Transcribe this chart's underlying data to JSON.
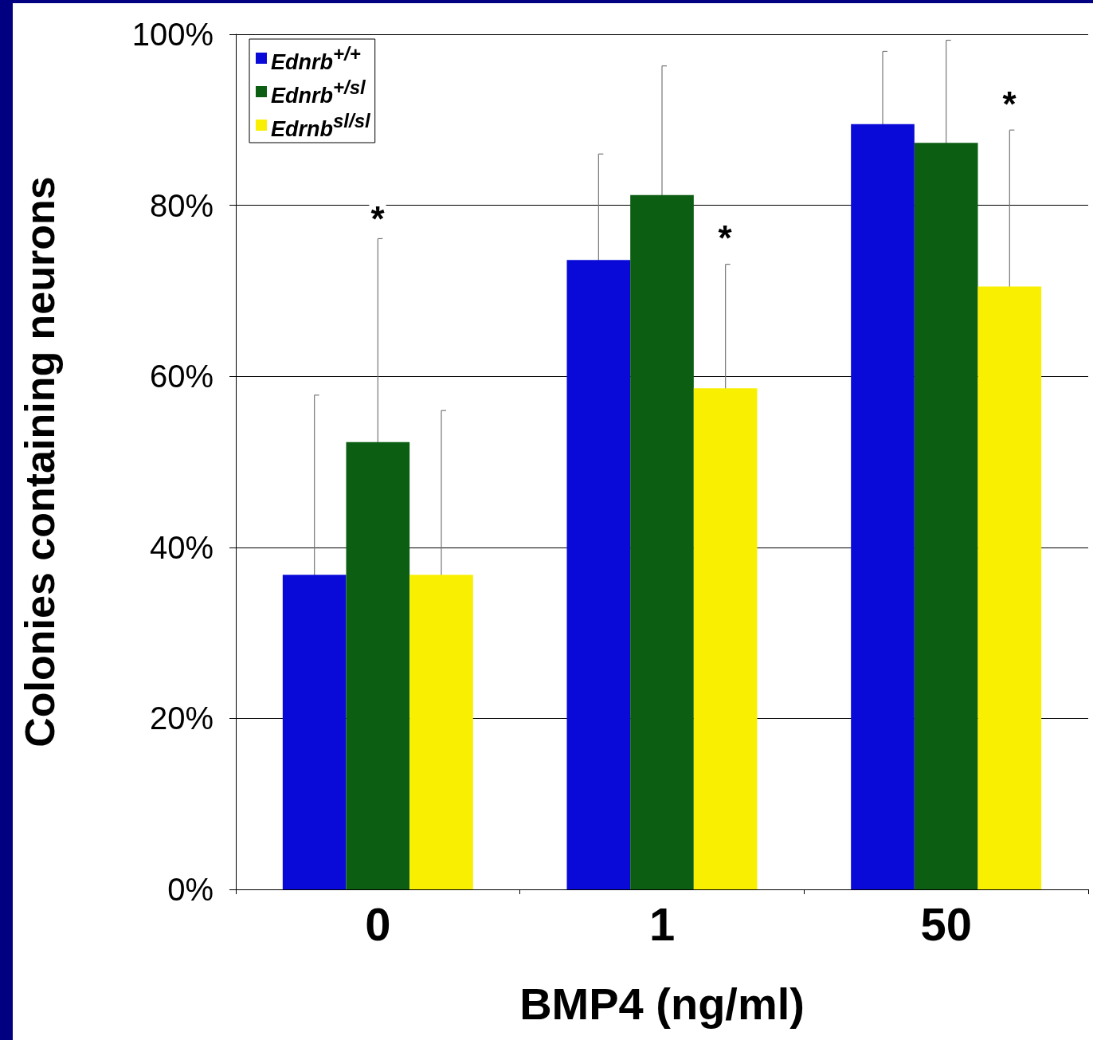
{
  "chart_data": {
    "type": "bar",
    "xlabel": "BMP4 (ng/ml)",
    "ylabel": "Colonies containing neurons",
    "categories": [
      "0",
      "1",
      "50"
    ],
    "series": [
      {
        "name": "Ednrb$^{+/+}$",
        "color": "#0a0ad8",
        "values": [
          36.8,
          73.6,
          89.5
        ],
        "errors": [
          21,
          12.4,
          8.5
        ]
      },
      {
        "name": "Ednrb$^{+/sl}$",
        "color": "#0b5e12",
        "values": [
          52.3,
          81.2,
          87.3
        ],
        "errors": [
          23.8,
          15.1,
          12
        ]
      },
      {
        "name": "Edrnb$^{sl/sl}$",
        "color": "#f8f000",
        "values": [
          36.8,
          58.6,
          70.5
        ],
        "errors": [
          19.2,
          14.5,
          18.3
        ]
      }
    ],
    "ylim": [
      0,
      100
    ],
    "yticks": [
      {
        "value": 0,
        "label": "0%"
      },
      {
        "value": 20,
        "label": "20%"
      },
      {
        "value": 40,
        "label": "40%"
      },
      {
        "value": 60,
        "label": "60%"
      },
      {
        "value": 80,
        "label": "80%"
      },
      {
        "value": 100,
        "label": "100%"
      }
    ],
    "grid": "y",
    "legend": "top left",
    "annotations": [
      "*",
      "*",
      "*"
    ]
  }
}
